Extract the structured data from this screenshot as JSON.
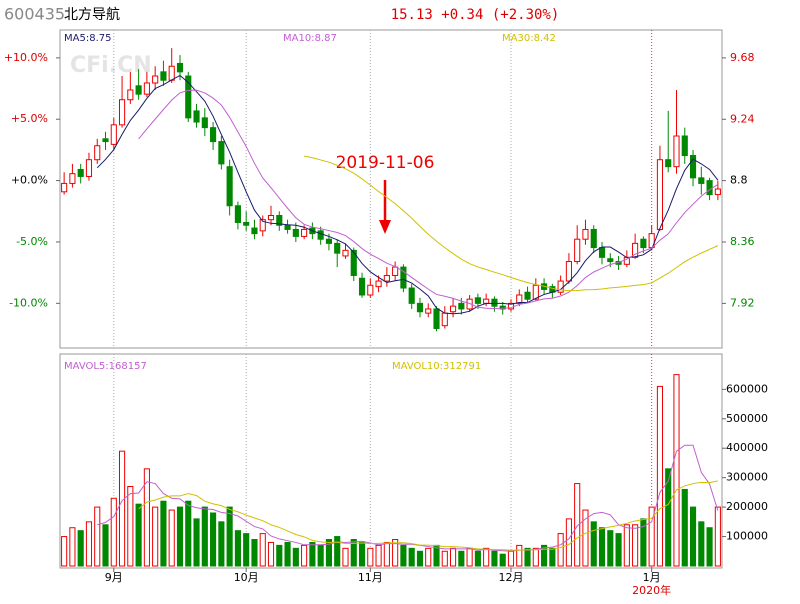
{
  "header": {
    "code": "600435",
    "name": "北方导航",
    "quote": "15.13 +0.34 (+2.30%)"
  },
  "chart_data": [
    {
      "type": "candlestick",
      "watermark": "CFi.CN",
      "annotation": "2019-11-06",
      "up_color": "#ee0000",
      "down_color": "#008800",
      "indicators": [
        {
          "label": "MA5:8.75",
          "period": 5,
          "color": "#1a1a6e"
        },
        {
          "label": "MA10:8.87",
          "period": 10,
          "color": "#c060d0"
        },
        {
          "label": "MA30:8.42",
          "period": 30,
          "color": "#d0c000"
        }
      ],
      "ylim": [
        7.6,
        9.88
      ],
      "yticks": [
        7.92,
        8.36,
        8.8,
        9.24,
        9.68
      ],
      "y2lim": [
        -13.64,
        12.27
      ],
      "y2ticks": [
        {
          "value": -10,
          "label": "-10.0%"
        },
        {
          "value": -5,
          "label": "-5.0%"
        },
        {
          "value": 0,
          "label": "+0.0%"
        },
        {
          "value": 5,
          "label": "+5.0%"
        },
        {
          "value": 10,
          "label": "+10.0%"
        }
      ],
      "ohlc": [
        [
          8.72,
          8.86,
          8.7,
          8.78
        ],
        [
          8.78,
          8.92,
          8.75,
          8.85
        ],
        [
          8.88,
          8.92,
          8.78,
          8.83
        ],
        [
          8.83,
          9.0,
          8.8,
          8.95
        ],
        [
          8.95,
          9.1,
          8.92,
          9.05
        ],
        [
          9.1,
          9.15,
          9.02,
          9.08
        ],
        [
          9.06,
          9.25,
          9.02,
          9.2
        ],
        [
          9.2,
          9.55,
          9.18,
          9.38
        ],
        [
          9.38,
          9.58,
          9.35,
          9.45
        ],
        [
          9.48,
          9.6,
          9.38,
          9.42
        ],
        [
          9.42,
          9.58,
          9.4,
          9.5
        ],
        [
          9.5,
          9.62,
          9.45,
          9.55
        ],
        [
          9.58,
          9.66,
          9.48,
          9.52
        ],
        [
          9.52,
          9.75,
          9.5,
          9.62
        ],
        [
          9.64,
          9.7,
          9.52,
          9.58
        ],
        [
          9.55,
          9.58,
          9.22,
          9.25
        ],
        [
          9.3,
          9.35,
          9.18,
          9.22
        ],
        [
          9.25,
          9.32,
          9.12,
          9.18
        ],
        [
          9.18,
          9.22,
          9.02,
          9.08
        ],
        [
          9.08,
          9.12,
          8.88,
          8.92
        ],
        [
          8.9,
          8.95,
          8.55,
          8.62
        ],
        [
          8.62,
          8.65,
          8.45,
          8.5
        ],
        [
          8.5,
          8.58,
          8.44,
          8.48
        ],
        [
          8.46,
          8.52,
          8.38,
          8.42
        ],
        [
          8.44,
          8.55,
          8.4,
          8.52
        ],
        [
          8.52,
          8.62,
          8.48,
          8.55
        ],
        [
          8.55,
          8.58,
          8.44,
          8.48
        ],
        [
          8.48,
          8.52,
          8.42,
          8.45
        ],
        [
          8.45,
          8.5,
          8.36,
          8.4
        ],
        [
          8.4,
          8.48,
          8.38,
          8.45
        ],
        [
          8.46,
          8.5,
          8.38,
          8.42
        ],
        [
          8.44,
          8.47,
          8.34,
          8.38
        ],
        [
          8.38,
          8.42,
          8.3,
          8.35
        ],
        [
          8.35,
          8.38,
          8.18,
          8.28
        ],
        [
          8.26,
          8.35,
          8.24,
          8.3
        ],
        [
          8.3,
          8.32,
          8.08,
          8.12
        ],
        [
          8.1,
          8.14,
          7.96,
          7.98
        ],
        [
          7.98,
          8.1,
          7.96,
          8.05
        ],
        [
          8.04,
          8.12,
          8.0,
          8.08
        ],
        [
          8.08,
          8.18,
          8.04,
          8.12
        ],
        [
          8.12,
          8.22,
          8.08,
          8.18
        ],
        [
          8.18,
          8.2,
          8.0,
          8.03
        ],
        [
          8.03,
          8.06,
          7.88,
          7.92
        ],
        [
          7.92,
          7.96,
          7.82,
          7.86
        ],
        [
          7.85,
          7.92,
          7.82,
          7.88
        ],
        [
          7.88,
          7.9,
          7.72,
          7.74
        ],
        [
          7.76,
          7.9,
          7.74,
          7.85
        ],
        [
          7.86,
          7.96,
          7.82,
          7.9
        ],
        [
          7.92,
          7.96,
          7.84,
          7.88
        ],
        [
          7.88,
          7.98,
          7.86,
          7.95
        ],
        [
          7.96,
          7.99,
          7.88,
          7.92
        ],
        [
          7.92,
          7.99,
          7.9,
          7.95
        ],
        [
          7.95,
          7.97,
          7.86,
          7.9
        ],
        [
          7.9,
          7.93,
          7.84,
          7.88
        ],
        [
          7.88,
          7.95,
          7.86,
          7.92
        ],
        [
          7.92,
          8.02,
          7.9,
          7.98
        ],
        [
          8.0,
          8.04,
          7.92,
          7.95
        ],
        [
          7.95,
          8.1,
          7.94,
          8.05
        ],
        [
          8.06,
          8.1,
          7.98,
          8.02
        ],
        [
          8.04,
          8.06,
          7.96,
          8.0
        ],
        [
          8.0,
          8.12,
          7.98,
          8.08
        ],
        [
          8.08,
          8.28,
          8.06,
          8.22
        ],
        [
          8.22,
          8.48,
          8.2,
          8.38
        ],
        [
          8.38,
          8.52,
          8.34,
          8.45
        ],
        [
          8.45,
          8.48,
          8.28,
          8.32
        ],
        [
          8.32,
          8.36,
          8.2,
          8.25
        ],
        [
          8.24,
          8.28,
          8.18,
          8.22
        ],
        [
          8.22,
          8.26,
          8.16,
          8.2
        ],
        [
          8.2,
          8.3,
          8.18,
          8.25
        ],
        [
          8.25,
          8.42,
          8.24,
          8.35
        ],
        [
          8.38,
          8.4,
          8.28,
          8.32
        ],
        [
          8.32,
          8.48,
          8.3,
          8.42
        ],
        [
          8.45,
          9.05,
          8.44,
          8.95
        ],
        [
          8.95,
          9.3,
          8.86,
          8.9
        ],
        [
          8.9,
          9.45,
          8.85,
          9.12
        ],
        [
          9.12,
          9.18,
          8.92,
          8.98
        ],
        [
          8.98,
          9.02,
          8.76,
          8.82
        ],
        [
          8.82,
          8.9,
          8.7,
          8.78
        ],
        [
          8.8,
          8.82,
          8.66,
          8.7
        ],
        [
          8.7,
          8.8,
          8.66,
          8.74
        ]
      ]
    },
    {
      "type": "volume",
      "x_sublabel": "2020年",
      "indicators": [
        {
          "label": "MAVOL5:168157",
          "period": 5,
          "color": "#c060d0"
        },
        {
          "label": "MAVOL10:312791",
          "period": 10,
          "color": "#d0c000"
        }
      ],
      "ylim": [
        0,
        720000
      ],
      "yticks": [
        100000,
        200000,
        300000,
        400000,
        500000,
        600000
      ],
      "categories": [
        null,
        null,
        null,
        null,
        null,
        null,
        "9月",
        null,
        null,
        null,
        null,
        null,
        null,
        null,
        null,
        null,
        null,
        null,
        null,
        null,
        null,
        null,
        "10月",
        null,
        null,
        null,
        null,
        null,
        null,
        null,
        null,
        null,
        null,
        null,
        null,
        null,
        null,
        "11月",
        null,
        null,
        null,
        null,
        null,
        null,
        null,
        null,
        null,
        null,
        null,
        null,
        null,
        null,
        null,
        null,
        "12月",
        null,
        null,
        null,
        null,
        null,
        null,
        null,
        null,
        null,
        null,
        null,
        null,
        null,
        null,
        null,
        null,
        "1月",
        null,
        null,
        null,
        null,
        null,
        null,
        null,
        null
      ],
      "values": [
        100000,
        130000,
        120000,
        150000,
        200000,
        140000,
        230000,
        390000,
        270000,
        210000,
        330000,
        200000,
        220000,
        190000,
        200000,
        220000,
        160000,
        200000,
        180000,
        150000,
        200000,
        120000,
        110000,
        90000,
        110000,
        80000,
        70000,
        80000,
        60000,
        70000,
        80000,
        70000,
        90000,
        100000,
        60000,
        90000,
        80000,
        60000,
        70000,
        80000,
        90000,
        70000,
        60000,
        50000,
        60000,
        70000,
        50000,
        60000,
        50000,
        60000,
        50000,
        60000,
        50000,
        40000,
        50000,
        70000,
        60000,
        60000,
        70000,
        60000,
        110000,
        160000,
        280000,
        190000,
        150000,
        130000,
        120000,
        110000,
        140000,
        140000,
        160000,
        200000,
        610000,
        330000,
        650000,
        260000,
        200000,
        150000,
        130000,
        200000
      ]
    }
  ]
}
